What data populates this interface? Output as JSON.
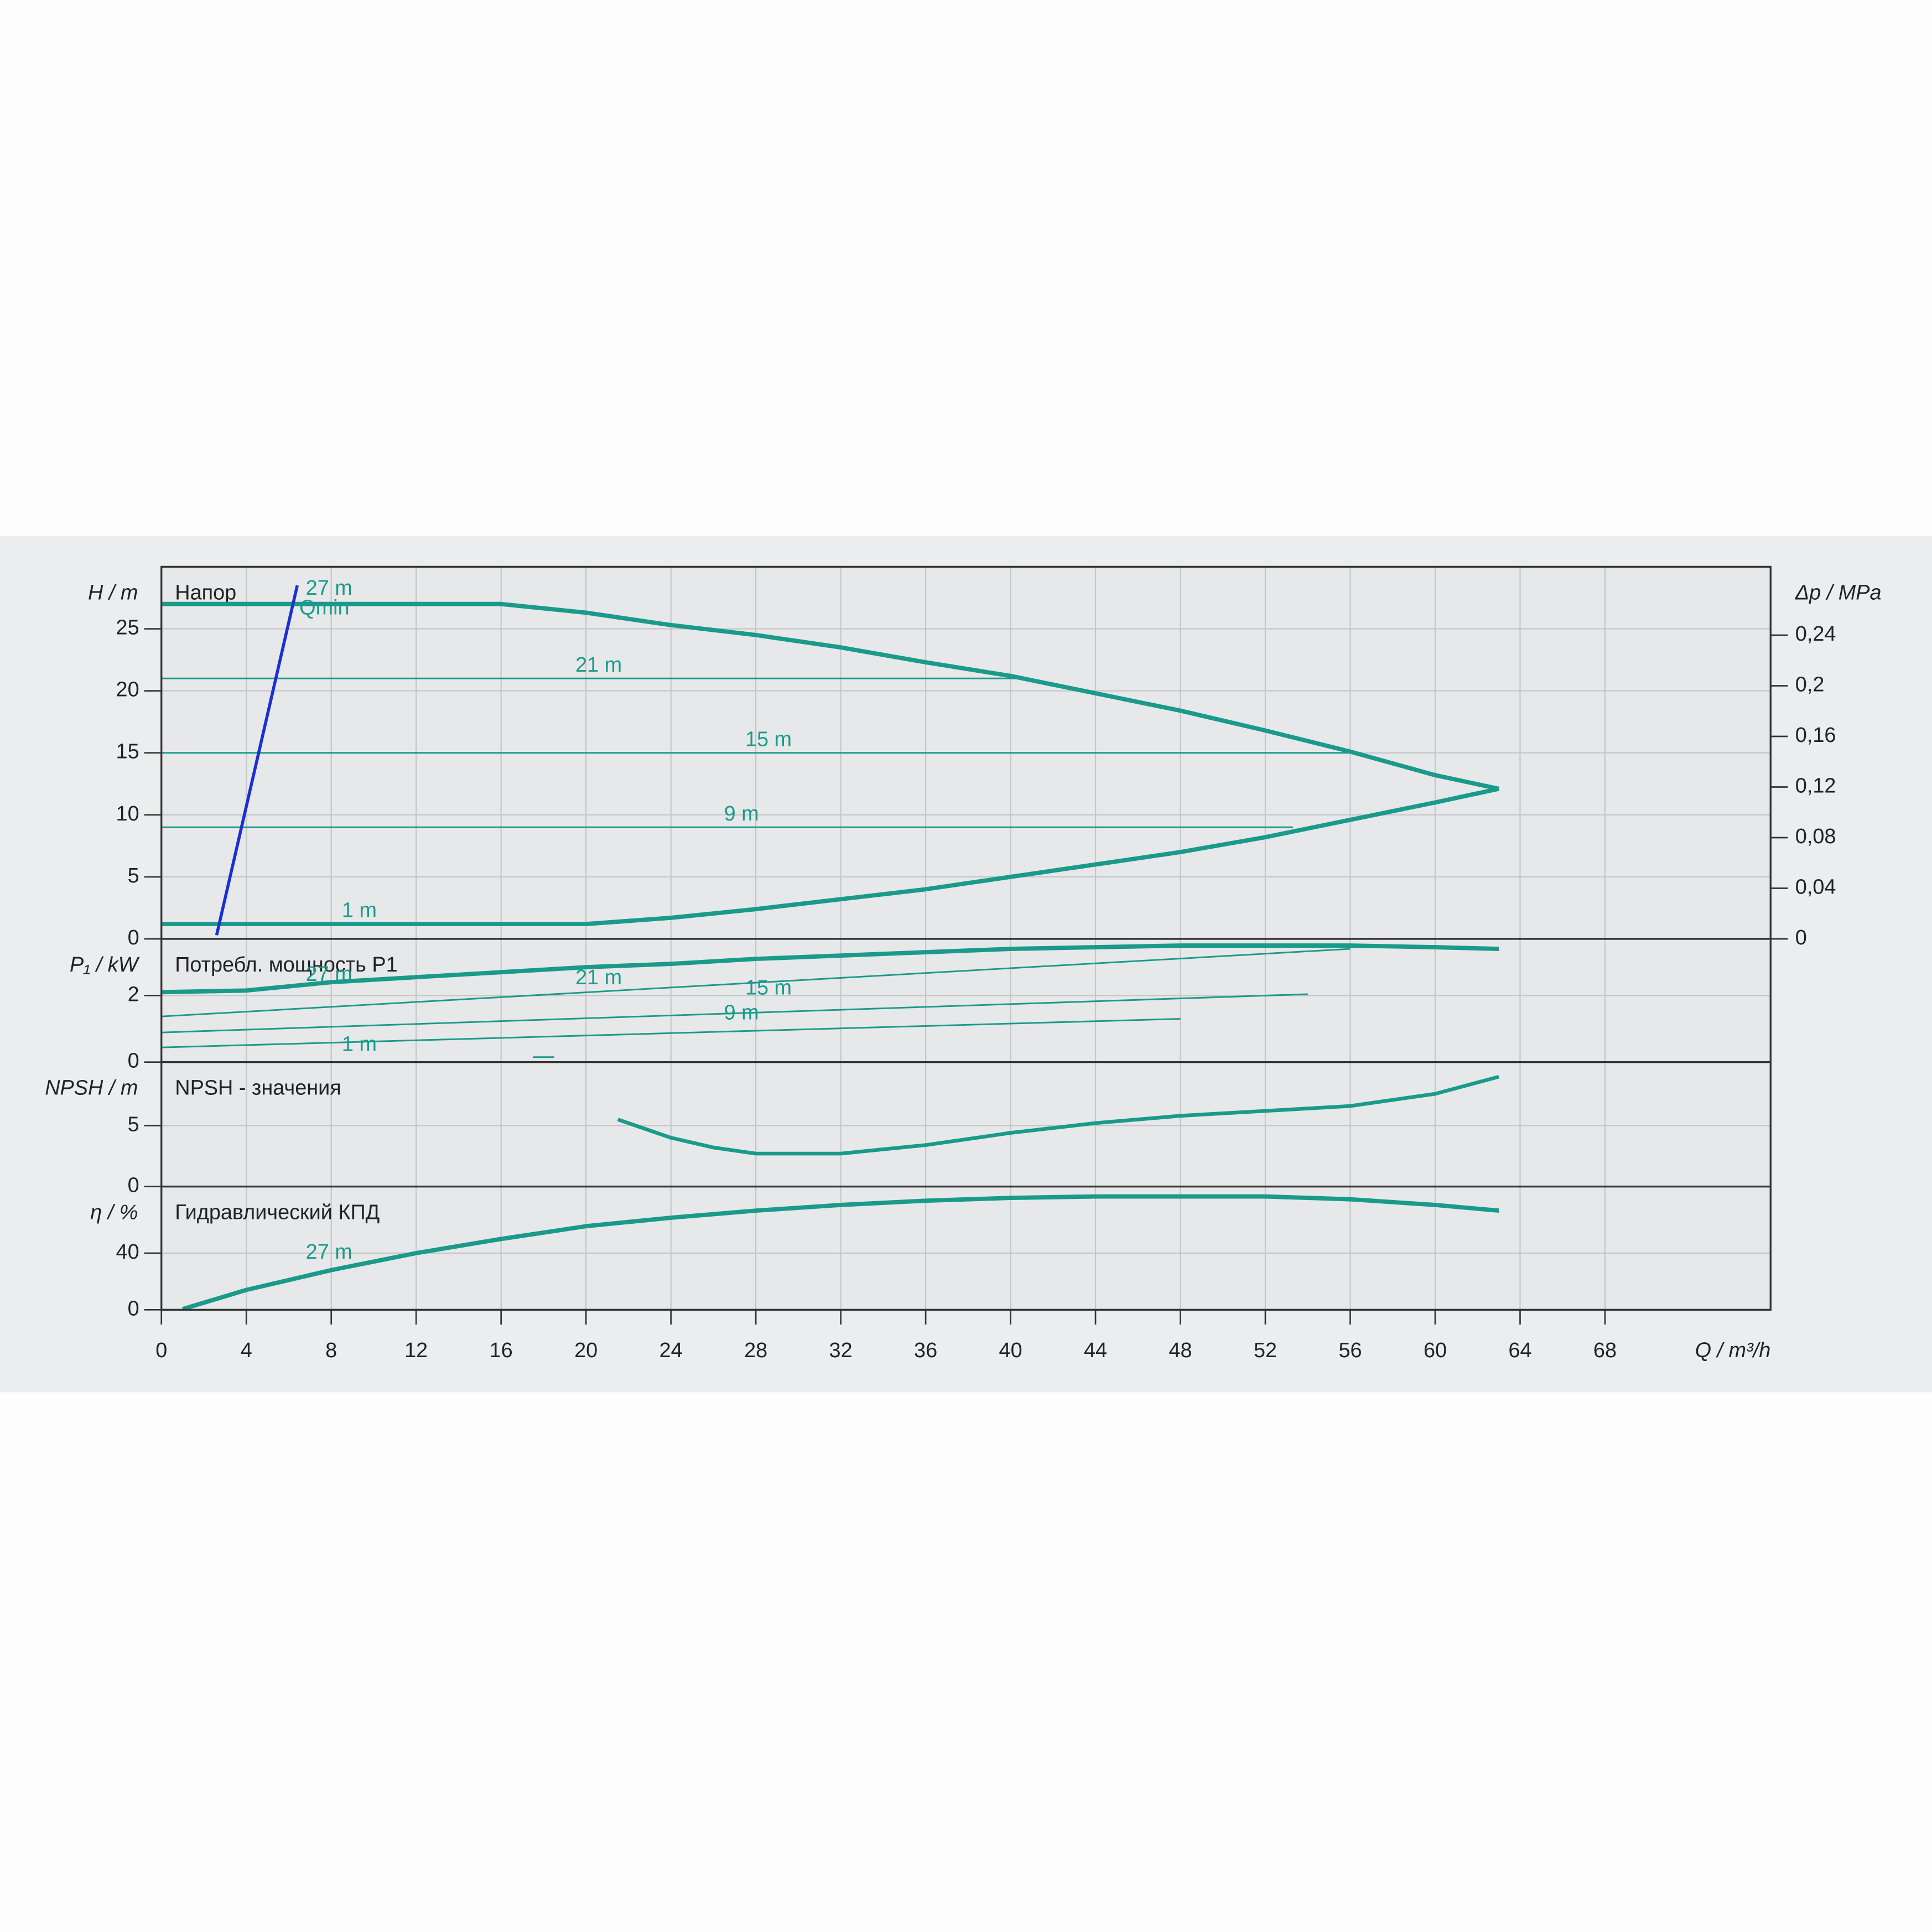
{
  "chart_data": [
    {
      "type": "line",
      "title": "Напор",
      "y_label": "H / m",
      "y2_label": "Δp / MPa",
      "ylim": [
        0,
        30
      ],
      "yticks": [
        0,
        5,
        10,
        15,
        20,
        25
      ],
      "y2lim": [
        0,
        0.294
      ],
      "y2ticks": [
        0,
        {
          "value": 0.04,
          "label": "0,04"
        },
        {
          "value": 0.08,
          "label": "0,08"
        },
        {
          "value": 0.12,
          "label": "0,12"
        },
        {
          "value": 0.16,
          "label": "0,16"
        },
        {
          "value": 0.2,
          "label": "0,2"
        },
        {
          "value": 0.24,
          "label": "0,24"
        }
      ],
      "grid": true,
      "series": [
        {
          "name": "27 m",
          "color": "#1a9a8a",
          "x": [
            0,
            16,
            20,
            24,
            28,
            32,
            36,
            40,
            44,
            48,
            52,
            56,
            60,
            63
          ],
          "values": [
            27,
            27,
            26.3,
            25.3,
            24.5,
            23.5,
            22.3,
            21.2,
            19.8,
            18.4,
            16.8,
            15.1,
            13.2,
            12.1
          ]
        },
        {
          "name": "21 m",
          "color": "#1a9a8a",
          "x": [
            0,
            40.3
          ],
          "values": [
            21,
            21
          ]
        },
        {
          "name": "15 m",
          "color": "#1a9a8a",
          "x": [
            0,
            56.5
          ],
          "values": [
            15,
            15
          ]
        },
        {
          "name": "9 m",
          "color": "#1a9a8a",
          "x": [
            0,
            53.3
          ],
          "values": [
            9,
            9
          ]
        },
        {
          "name": "1 m",
          "color": "#1a9a8a",
          "x": [
            0,
            20,
            24,
            28,
            32,
            36,
            40,
            44,
            48,
            52,
            56,
            60,
            63
          ],
          "values": [
            1.2,
            1.2,
            1.7,
            2.4,
            3.2,
            4,
            5,
            6,
            7,
            8.2,
            9.6,
            11,
            12.1
          ]
        },
        {
          "name": "Qmin",
          "color": "#1c2fd6",
          "x": [
            2.6,
            6.4
          ],
          "values": [
            0.3,
            28.5
          ]
        }
      ]
    },
    {
      "type": "line",
      "title": "Потребл. мощность P1",
      "y_label": "P₁ / kW",
      "ylim": [
        0,
        3.7
      ],
      "yticks": [
        0,
        2
      ],
      "grid": true,
      "series": [
        {
          "name": "27 m",
          "color": "#1a9a8a",
          "x": [
            0,
            4,
            8,
            12,
            16,
            20,
            24,
            28,
            32,
            36,
            40,
            44,
            48,
            52,
            56,
            60,
            63
          ],
          "values": [
            2.1,
            2.15,
            2.4,
            2.55,
            2.7,
            2.85,
            2.95,
            3.1,
            3.2,
            3.3,
            3.4,
            3.45,
            3.5,
            3.5,
            3.5,
            3.45,
            3.4
          ]
        },
        {
          "name": "21 m",
          "color": "#1a9a8a",
          "x": [
            0,
            56
          ],
          "values": [
            1.37,
            3.4
          ]
        },
        {
          "name": "15 m",
          "color": "#1a9a8a",
          "x": [
            0,
            54
          ],
          "values": [
            0.89,
            2.04
          ]
        },
        {
          "name": "9 m",
          "color": "#1a9a8a",
          "x": [
            0,
            48
          ],
          "values": [
            0.44,
            1.3
          ]
        },
        {
          "name": "1 m",
          "color": "#1a9a8a",
          "x": [
            17.5,
            18.5
          ],
          "values": [
            0.15,
            0.15
          ]
        }
      ]
    },
    {
      "type": "line",
      "title": "NPSH - значения",
      "y_label": "NPSH / m",
      "ylim": [
        0,
        10.2
      ],
      "yticks": [
        0,
        5
      ],
      "grid": true,
      "series": [
        {
          "color": "#1a9a8a",
          "x": [
            21.5,
            24,
            26,
            28,
            32,
            36,
            40,
            44,
            48,
            52,
            56,
            60,
            63
          ],
          "values": [
            5.5,
            4,
            3.2,
            2.7,
            2.7,
            3.4,
            4.4,
            5.2,
            5.8,
            6.2,
            6.6,
            7.6,
            9
          ]
        }
      ]
    },
    {
      "type": "line",
      "title": "Гидравлический КПД",
      "y_label": "η / %",
      "x_label": "Q / m³/h",
      "ylim": [
        0,
        87
      ],
      "yticks": [
        0,
        40
      ],
      "xlim": [
        0,
        75.8
      ],
      "xticks": [
        0,
        4,
        8,
        12,
        16,
        20,
        24,
        28,
        32,
        36,
        40,
        44,
        48,
        52,
        56,
        60,
        64,
        68
      ],
      "grid": true,
      "series": [
        {
          "name": "27 m",
          "color": "#1a9a8a",
          "x": [
            1,
            4,
            8,
            12,
            16,
            20,
            24,
            28,
            32,
            36,
            40,
            44,
            48,
            52,
            56,
            60,
            63
          ],
          "values": [
            0.5,
            14,
            28,
            40,
            50,
            59,
            65,
            70,
            74,
            77,
            79,
            80,
            80,
            80,
            78,
            74,
            70
          ]
        }
      ]
    }
  ]
}
